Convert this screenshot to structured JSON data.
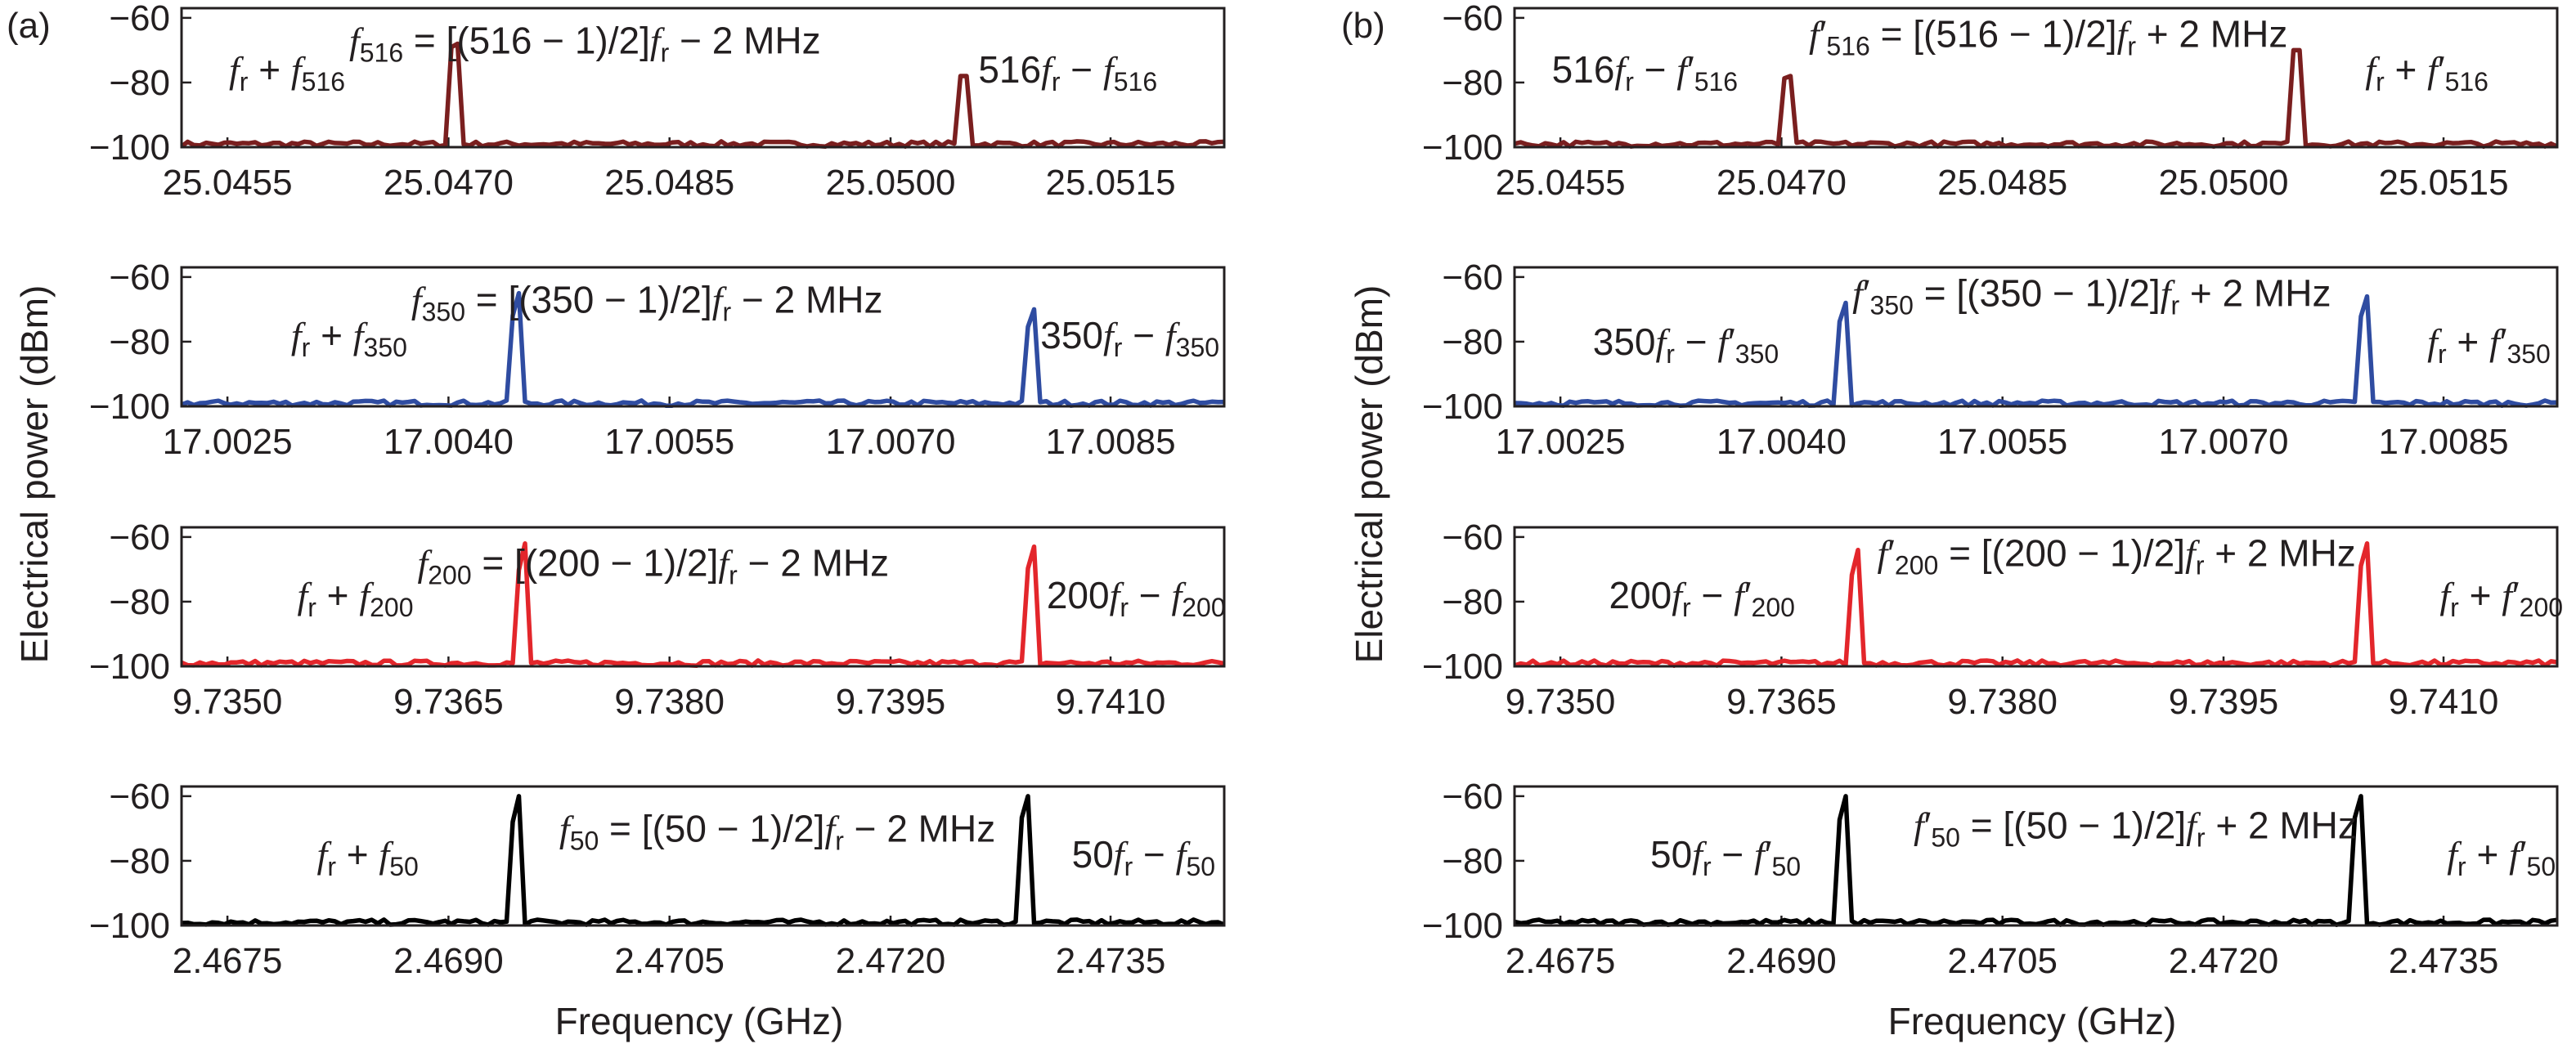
{
  "figure": {
    "ylabel": "Electrical power (dBm)",
    "xlabel": "Frequency (GHz)"
  },
  "chart_data": [
    {
      "type": "line",
      "panel": "(a)",
      "x_ticks": [
        "25.0455",
        "25.0470",
        "25.0485",
        "25.0500",
        "25.0515"
      ],
      "y_ticks": [
        "−60",
        "−80",
        "−100"
      ],
      "ylim": [
        -100,
        -57
      ],
      "xlim": [
        25.0443,
        25.0527
      ],
      "series": [
        {
          "color": "#7a1f1f",
          "peaks": [
            {
              "x": 25.0465,
              "y": -68
            },
            {
              "x": 25.0506,
              "y": -78
            }
          ],
          "noise_floor": -99
        }
      ],
      "annotations": [
        {
          "text": "f_r + f_516",
          "x": 25.04515,
          "y": -76
        },
        {
          "text": "f_516 = [(516 − 1)/2]f_r − 2 MHz",
          "x": 25.04755,
          "y": -67
        },
        {
          "text": "516f_r − f_516",
          "x": 25.05144,
          "y": -76
        }
      ]
    },
    {
      "type": "line",
      "panel": "(a)",
      "x_ticks": [
        "17.0025",
        "17.0040",
        "17.0055",
        "17.0070",
        "17.0085"
      ],
      "y_ticks": [
        "−60",
        "−80",
        "−100"
      ],
      "ylim": [
        -100,
        -57
      ],
      "xlim": [
        17.0013,
        17.0097
      ],
      "series": [
        {
          "color": "#2f4ca1",
          "peaks": [
            {
              "x": 17.004,
              "y": -65
            },
            {
              "x": 17.00815,
              "y": -70
            }
          ],
          "noise_floor": -99
        }
      ],
      "annotations": [
        {
          "text": "f_r + f_350",
          "x": 17.00265,
          "y": -78
        },
        {
          "text": "f_350 = [(350 − 1)/2]f_r − 2 MHz",
          "x": 17.00505,
          "y": -67
        },
        {
          "text": "350f_r − f_350",
          "x": 17.00894,
          "y": -78
        }
      ]
    },
    {
      "type": "line",
      "panel": "(a)",
      "x_ticks": [
        "9.7350",
        "9.7365",
        "9.7380",
        "9.7395",
        "9.7410"
      ],
      "y_ticks": [
        "−60",
        "−80",
        "−100"
      ],
      "ylim": [
        -100,
        -57
      ],
      "xlim": [
        9.7338,
        9.7422
      ],
      "series": [
        {
          "color": "#e3262b",
          "peaks": [
            {
              "x": 9.73655,
              "y": -62
            },
            {
              "x": 9.74065,
              "y": -63
            }
          ],
          "noise_floor": -99
        }
      ],
      "annotations": [
        {
          "text": "f_r + f_200",
          "x": 9.7352,
          "y": -78
        },
        {
          "text": "f_200 = [(200 − 1)/2]f_r − 2 MHz",
          "x": 9.7376,
          "y": -68
        },
        {
          "text": "200f_r − f_200",
          "x": 9.74149,
          "y": -78
        }
      ]
    },
    {
      "type": "line",
      "panel": "(a)",
      "x_ticks": [
        "2.4675",
        "2.4690",
        "2.4705",
        "2.4720",
        "2.4735"
      ],
      "y_ticks": [
        "−60",
        "−80",
        "−100"
      ],
      "ylim": [
        -100,
        -57
      ],
      "xlim": [
        2.4663,
        2.4747
      ],
      "series": [
        {
          "color": "#000000",
          "peaks": [
            {
              "x": 2.469,
              "y": -60
            },
            {
              "x": 2.4731,
              "y": -60
            }
          ],
          "noise_floor": -99
        }
      ],
      "annotations": [
        {
          "text": "f_r + f_50",
          "x": 2.4678,
          "y": -78
        },
        {
          "text": "f_50 = [(50 − 1)/2]f_r − 2 MHz",
          "x": 2.4711,
          "y": -70
        },
        {
          "text": "50f_r − f_50",
          "x": 2.47405,
          "y": -78
        }
      ]
    },
    {
      "type": "line",
      "panel": "(b)",
      "x_ticks": [
        "25.0455",
        "25.0470",
        "25.0485",
        "25.0500",
        "25.0515"
      ],
      "y_ticks": [
        "−60",
        "−80",
        "−100"
      ],
      "ylim": [
        -100,
        -57
      ],
      "xlim": [
        25.0443,
        25.0527
      ],
      "series": [
        {
          "color": "#7a1f1f",
          "peaks": [
            {
              "x": 25.0465,
              "y": -78
            },
            {
              "x": 25.0506,
              "y": -70
            }
          ],
          "noise_floor": -99
        }
      ],
      "annotations": [
        {
          "text": "516f_r − f′_516",
          "x": 25.04535,
          "y": -76
        },
        {
          "text": "f′_516 = [(516 − 1)/2]f_r + 2 MHz",
          "x": 25.0486,
          "y": -65
        },
        {
          "text": "f_r + f′_516",
          "x": 25.05165,
          "y": -76
        }
      ]
    },
    {
      "type": "line",
      "panel": "(b)",
      "x_ticks": [
        "17.0025",
        "17.0040",
        "17.0055",
        "17.0070",
        "17.0085"
      ],
      "y_ticks": [
        "−60",
        "−80",
        "−100"
      ],
      "ylim": [
        -100,
        -57
      ],
      "xlim": [
        17.0013,
        17.0097
      ],
      "series": [
        {
          "color": "#2f4ca1",
          "peaks": [
            {
              "x": 17.00395,
              "y": -68
            },
            {
              "x": 17.00815,
              "y": -66
            }
          ],
          "noise_floor": -99
        }
      ],
      "annotations": [
        {
          "text": "350f_r − f′_350",
          "x": 17.00268,
          "y": -80
        },
        {
          "text": "f′_350 = [(350 − 1)/2]f_r + 2 MHz",
          "x": 17.00595,
          "y": -65
        },
        {
          "text": "f_r + f′_350",
          "x": 17.00915,
          "y": -80
        }
      ]
    },
    {
      "type": "line",
      "panel": "(b)",
      "x_ticks": [
        "9.7350",
        "9.7365",
        "9.7380",
        "9.7395",
        "9.7410"
      ],
      "y_ticks": [
        "−60",
        "−80",
        "−100"
      ],
      "ylim": [
        -100,
        -57
      ],
      "xlim": [
        9.7338,
        9.7422
      ],
      "series": [
        {
          "color": "#e3262b",
          "peaks": [
            {
              "x": 9.73655,
              "y": -64
            },
            {
              "x": 9.74065,
              "y": -62
            }
          ],
          "noise_floor": -99
        }
      ],
      "annotations": [
        {
          "text": "200f_r − f′_200",
          "x": 9.73531,
          "y": -78
        },
        {
          "text": "f′_200 = [(200 − 1)/2]f_r + 2 MHz",
          "x": 9.73865,
          "y": -65
        },
        {
          "text": "f_r + f′_200",
          "x": 9.74175,
          "y": -78
        }
      ]
    },
    {
      "type": "line",
      "panel": "(b)",
      "x_ticks": [
        "2.4675",
        "2.4690",
        "2.4705",
        "2.4720",
        "2.4735"
      ],
      "y_ticks": [
        "−60",
        "−80",
        "−100"
      ],
      "ylim": [
        -100,
        -57
      ],
      "xlim": [
        2.4663,
        2.4747
      ],
      "series": [
        {
          "color": "#000000",
          "peaks": [
            {
              "x": 2.46895,
              "y": -60
            },
            {
              "x": 2.4731,
              "y": -60
            }
          ],
          "noise_floor": -99
        }
      ],
      "annotations": [
        {
          "text": "50f_r − f′_50",
          "x": 2.468,
          "y": -78
        },
        {
          "text": "f′_50 = [(50 − 1)/2]f_r + 2 MHz",
          "x": 2.4713,
          "y": -69
        },
        {
          "text": "f_r + f′_50",
          "x": 2.47425,
          "y": -78
        }
      ]
    }
  ]
}
